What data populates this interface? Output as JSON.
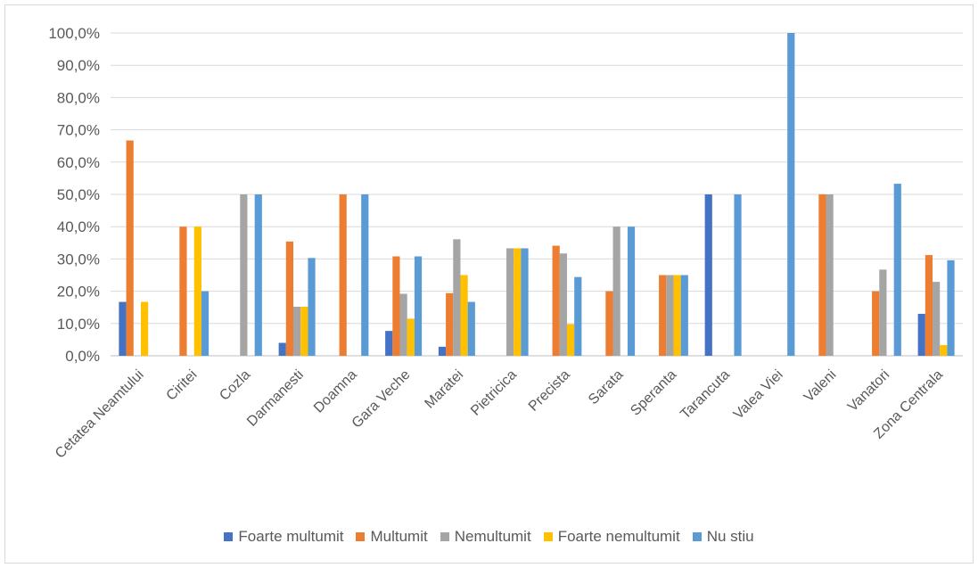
{
  "chart_data": {
    "type": "bar",
    "categories": [
      "Cetatea Neamtului",
      "Ciritei",
      "Cozla",
      "Darmanesti",
      "Doamna",
      "Gara Veche",
      "Maratei",
      "Pietricica",
      "Precista",
      "Sarata",
      "Speranta",
      "Tarancuta",
      "Valea Viei",
      "Valeni",
      "Vanatori",
      "Zona Centrala"
    ],
    "y_ticks": [
      "0,0%",
      "10,0%",
      "20,0%",
      "30,0%",
      "40,0%",
      "50,0%",
      "60,0%",
      "70,0%",
      "80,0%",
      "90,0%",
      "100,0%"
    ],
    "ylim": [
      0,
      100
    ],
    "grid": true,
    "legend_position": "bottom",
    "series": [
      {
        "name": "Foarte multumit",
        "color": "#4472C4",
        "values": [
          16.7,
          0,
          0,
          4.0,
          0,
          7.7,
          2.8,
          0,
          0,
          0,
          0,
          50.0,
          0,
          0,
          0,
          13.0
        ]
      },
      {
        "name": "Multumit",
        "color": "#ED7D31",
        "values": [
          66.7,
          40.0,
          0,
          35.4,
          50.0,
          30.8,
          19.4,
          0,
          34.1,
          20.0,
          25.0,
          0,
          0,
          50.0,
          20.0,
          31.2
        ]
      },
      {
        "name": "Nemultumit",
        "color": "#A5A5A5",
        "values": [
          0,
          0,
          50.0,
          15.2,
          0,
          19.2,
          36.1,
          33.3,
          31.7,
          40.0,
          25.0,
          0,
          0,
          50.0,
          26.7,
          22.9
        ]
      },
      {
        "name": "Foarte nemultumit",
        "color": "#FFC000",
        "values": [
          16.7,
          40.0,
          0,
          15.2,
          0,
          11.5,
          25.0,
          33.3,
          9.8,
          0,
          25.0,
          0,
          0,
          0,
          0,
          3.3
        ]
      },
      {
        "name": "Nu stiu",
        "color": "#5B9BD5",
        "values": [
          0,
          20.0,
          50.0,
          30.3,
          50.0,
          30.8,
          16.7,
          33.3,
          24.4,
          40.0,
          25.0,
          50.0,
          100.0,
          0,
          53.3,
          29.6
        ]
      }
    ]
  }
}
